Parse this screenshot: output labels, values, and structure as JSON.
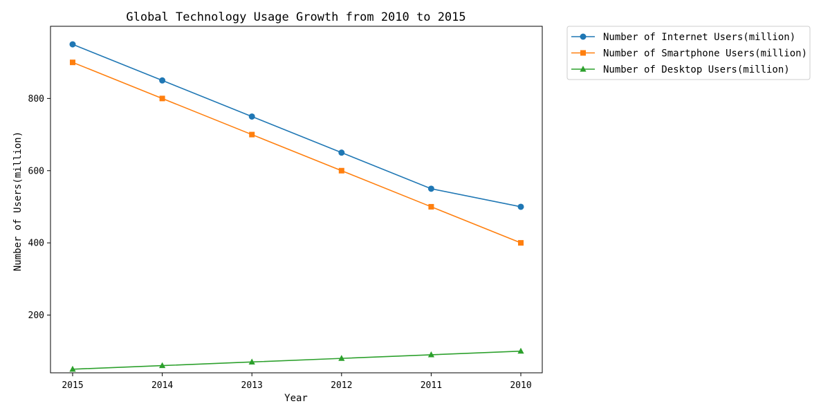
{
  "chart_data": {
    "type": "line",
    "title": "Global Technology Usage Growth from 2010 to 2015",
    "xlabel": "Year",
    "ylabel": "Number of Users(million)",
    "categories": [
      "2015",
      "2014",
      "2013",
      "2012",
      "2011",
      "2010"
    ],
    "ylim": [
      40,
      1000
    ],
    "yticks": [
      200,
      400,
      600,
      800
    ],
    "grid": false,
    "legend_position": "outside top-right",
    "series": [
      {
        "name": "Number of Internet Users(million)",
        "values": [
          950,
          850,
          750,
          650,
          550,
          500
        ],
        "color": "#1f77b4",
        "marker": "circle"
      },
      {
        "name": "Number of Smartphone Users(million)",
        "values": [
          900,
          800,
          700,
          600,
          500,
          400
        ],
        "color": "#ff7f0e",
        "marker": "square"
      },
      {
        "name": "Number of Desktop Users(million)",
        "values": [
          50,
          60,
          70,
          80,
          90,
          100
        ],
        "color": "#2ca02c",
        "marker": "triangle"
      }
    ]
  }
}
